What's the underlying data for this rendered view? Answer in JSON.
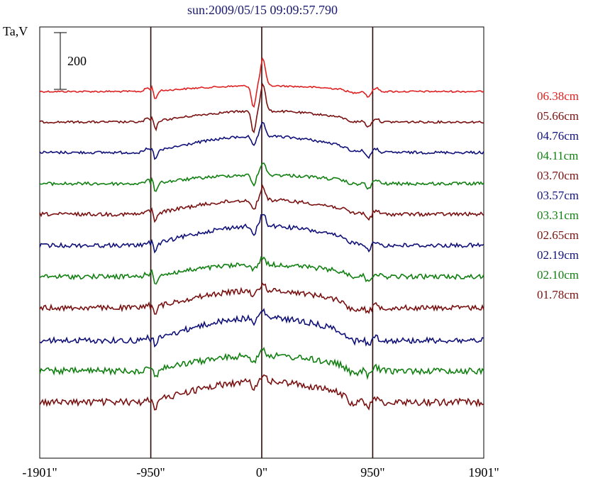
{
  "chart_data": {
    "type": "line",
    "title": "sun:2009/05/15 09:09:57.790",
    "ylabel": "Ta,V",
    "scale_bar_label": "200",
    "xlim": [
      -1901,
      1901
    ],
    "x_ticks": [
      -1901,
      -950,
      0,
      950,
      1901
    ],
    "x_tick_labels": [
      "-1901\"",
      "-950\"",
      "0\"",
      "950\"",
      "1901\""
    ],
    "vertical_lines_x": [
      -950,
      0,
      950
    ],
    "legend_position": "right",
    "series": [
      {
        "name": "06.38cm",
        "color": "#e02020"
      },
      {
        "name": "05.66cm",
        "color": "#7a1010"
      },
      {
        "name": "04.76cm",
        "color": "#10107a"
      },
      {
        "name": "04.11cm",
        "color": "#108010"
      },
      {
        "name": "03.70cm",
        "color": "#7a1010"
      },
      {
        "name": "03.57cm",
        "color": "#10107a"
      },
      {
        "name": "03.31cm",
        "color": "#108010"
      },
      {
        "name": "02.65cm",
        "color": "#7a1010"
      },
      {
        "name": "02.19cm",
        "color": "#10107a"
      },
      {
        "name": "02.10cm",
        "color": "#108010"
      },
      {
        "name": "01.78cm",
        "color": "#7a1010"
      }
    ]
  }
}
